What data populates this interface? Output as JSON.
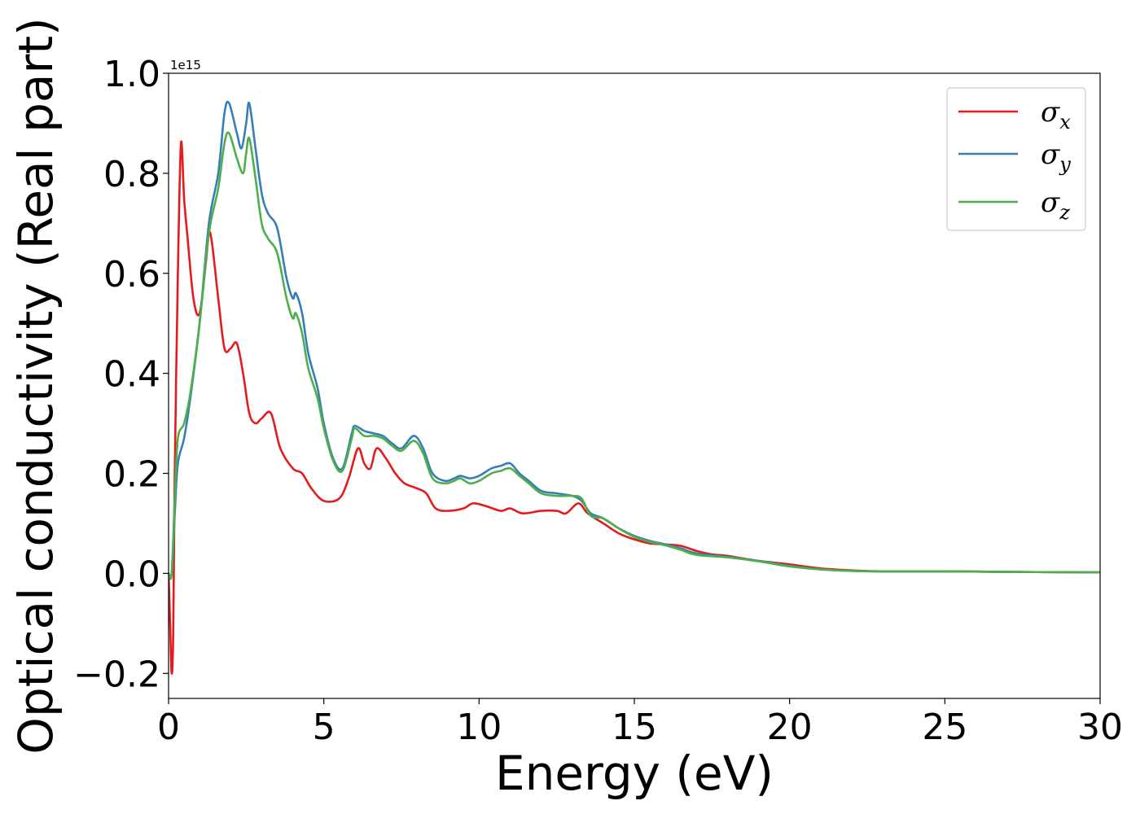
{
  "chart_data": {
    "type": "line",
    "title": "",
    "xlabel": "Energy (eV)",
    "ylabel": "Optical conductivity (Real part)",
    "y_offset_text": "1e15",
    "xlim": [
      0,
      30
    ],
    "ylim": [
      -0.25,
      1.0
    ],
    "x_ticks": [
      0,
      5,
      10,
      15,
      20,
      25,
      30
    ],
    "x_tick_labels": [
      "0",
      "5",
      "10",
      "15",
      "20",
      "25",
      "30"
    ],
    "y_ticks": [
      -0.2,
      0.0,
      0.2,
      0.4,
      0.6,
      0.8,
      1.0
    ],
    "y_tick_labels": [
      "−0.2",
      "0.0",
      "0.2",
      "0.4",
      "0.6",
      "0.8",
      "1.0"
    ],
    "grid": false,
    "legend_position": "top-right",
    "series": [
      {
        "name": "σx",
        "symbol": "σ",
        "subscript": "x",
        "color": "#e41a1c",
        "points": [
          [
            0,
            0.0
          ],
          [
            0.05,
            -0.1
          ],
          [
            0.1,
            -0.2
          ],
          [
            0.15,
            -0.12
          ],
          [
            0.2,
            0.2
          ],
          [
            0.3,
            0.6
          ],
          [
            0.4,
            0.86
          ],
          [
            0.5,
            0.75
          ],
          [
            0.6,
            0.68
          ],
          [
            0.8,
            0.55
          ],
          [
            1.0,
            0.52
          ],
          [
            1.2,
            0.62
          ],
          [
            1.3,
            0.68
          ],
          [
            1.4,
            0.66
          ],
          [
            1.6,
            0.55
          ],
          [
            1.8,
            0.45
          ],
          [
            2.0,
            0.45
          ],
          [
            2.2,
            0.46
          ],
          [
            2.4,
            0.4
          ],
          [
            2.6,
            0.32
          ],
          [
            2.8,
            0.3
          ],
          [
            3.0,
            0.31
          ],
          [
            3.3,
            0.32
          ],
          [
            3.6,
            0.25
          ],
          [
            4.0,
            0.21
          ],
          [
            4.3,
            0.2
          ],
          [
            4.6,
            0.17
          ],
          [
            5.0,
            0.145
          ],
          [
            5.5,
            0.15
          ],
          [
            5.8,
            0.19
          ],
          [
            6.1,
            0.25
          ],
          [
            6.3,
            0.22
          ],
          [
            6.5,
            0.21
          ],
          [
            6.7,
            0.25
          ],
          [
            7.0,
            0.23
          ],
          [
            7.3,
            0.2
          ],
          [
            7.6,
            0.18
          ],
          [
            8.0,
            0.17
          ],
          [
            8.3,
            0.16
          ],
          [
            8.6,
            0.13
          ],
          [
            9.0,
            0.125
          ],
          [
            9.5,
            0.13
          ],
          [
            9.8,
            0.14
          ],
          [
            10.2,
            0.135
          ],
          [
            10.7,
            0.125
          ],
          [
            11.0,
            0.13
          ],
          [
            11.4,
            0.12
          ],
          [
            12.0,
            0.125
          ],
          [
            12.5,
            0.125
          ],
          [
            12.8,
            0.12
          ],
          [
            13.2,
            0.14
          ],
          [
            13.5,
            0.12
          ],
          [
            14.0,
            0.1
          ],
          [
            14.5,
            0.08
          ],
          [
            15.0,
            0.068
          ],
          [
            15.5,
            0.06
          ],
          [
            16.0,
            0.058
          ],
          [
            16.5,
            0.055
          ],
          [
            17.0,
            0.045
          ],
          [
            17.5,
            0.038
          ],
          [
            18.0,
            0.035
          ],
          [
            19.0,
            0.025
          ],
          [
            20.0,
            0.018
          ],
          [
            21.0,
            0.01
          ],
          [
            22.0,
            0.006
          ],
          [
            23.0,
            0.004
          ],
          [
            25.0,
            0.004
          ],
          [
            27.0,
            0.003
          ],
          [
            30.0,
            0.002
          ]
        ]
      },
      {
        "name": "σy",
        "symbol": "σ",
        "subscript": "y",
        "color": "#377eb8",
        "points": [
          [
            0,
            0.0
          ],
          [
            0.1,
            0.0
          ],
          [
            0.2,
            0.12
          ],
          [
            0.3,
            0.22
          ],
          [
            0.5,
            0.27
          ],
          [
            0.7,
            0.35
          ],
          [
            1.0,
            0.5
          ],
          [
            1.3,
            0.7
          ],
          [
            1.6,
            0.8
          ],
          [
            1.8,
            0.92
          ],
          [
            1.95,
            0.94
          ],
          [
            2.2,
            0.88
          ],
          [
            2.35,
            0.85
          ],
          [
            2.5,
            0.9
          ],
          [
            2.6,
            0.94
          ],
          [
            2.8,
            0.85
          ],
          [
            3.0,
            0.76
          ],
          [
            3.2,
            0.72
          ],
          [
            3.5,
            0.69
          ],
          [
            3.8,
            0.59
          ],
          [
            4.0,
            0.55
          ],
          [
            4.1,
            0.56
          ],
          [
            4.3,
            0.52
          ],
          [
            4.5,
            0.44
          ],
          [
            4.8,
            0.37
          ],
          [
            5.0,
            0.3
          ],
          [
            5.3,
            0.23
          ],
          [
            5.6,
            0.21
          ],
          [
            5.9,
            0.28
          ],
          [
            6.0,
            0.295
          ],
          [
            6.3,
            0.285
          ],
          [
            6.6,
            0.28
          ],
          [
            6.9,
            0.275
          ],
          [
            7.2,
            0.26
          ],
          [
            7.5,
            0.25
          ],
          [
            7.9,
            0.275
          ],
          [
            8.2,
            0.25
          ],
          [
            8.5,
            0.2
          ],
          [
            8.9,
            0.185
          ],
          [
            9.2,
            0.19
          ],
          [
            9.4,
            0.195
          ],
          [
            9.7,
            0.19
          ],
          [
            10.0,
            0.195
          ],
          [
            10.4,
            0.21
          ],
          [
            10.7,
            0.215
          ],
          [
            11.0,
            0.22
          ],
          [
            11.3,
            0.2
          ],
          [
            11.6,
            0.185
          ],
          [
            12.0,
            0.165
          ],
          [
            12.5,
            0.16
          ],
          [
            13.0,
            0.155
          ],
          [
            13.3,
            0.145
          ],
          [
            13.6,
            0.12
          ],
          [
            14.0,
            0.11
          ],
          [
            14.5,
            0.09
          ],
          [
            15.0,
            0.075
          ],
          [
            15.5,
            0.065
          ],
          [
            16.0,
            0.058
          ],
          [
            16.5,
            0.05
          ],
          [
            17.0,
            0.04
          ],
          [
            18.0,
            0.033
          ],
          [
            19.0,
            0.025
          ],
          [
            20.0,
            0.015
          ],
          [
            21.0,
            0.008
          ],
          [
            22.0,
            0.005
          ],
          [
            23.0,
            0.004
          ],
          [
            25.0,
            0.004
          ],
          [
            27.0,
            0.003
          ],
          [
            30.0,
            0.002
          ]
        ]
      },
      {
        "name": "σz",
        "symbol": "σ",
        "subscript": "z",
        "color": "#4daf4a",
        "points": [
          [
            0,
            0.0
          ],
          [
            0.1,
            0.0
          ],
          [
            0.2,
            0.15
          ],
          [
            0.3,
            0.27
          ],
          [
            0.5,
            0.3
          ],
          [
            0.7,
            0.36
          ],
          [
            1.0,
            0.5
          ],
          [
            1.3,
            0.68
          ],
          [
            1.6,
            0.77
          ],
          [
            1.8,
            0.86
          ],
          [
            1.95,
            0.88
          ],
          [
            2.2,
            0.83
          ],
          [
            2.4,
            0.8
          ],
          [
            2.5,
            0.84
          ],
          [
            2.6,
            0.87
          ],
          [
            2.8,
            0.79
          ],
          [
            3.0,
            0.7
          ],
          [
            3.2,
            0.67
          ],
          [
            3.5,
            0.64
          ],
          [
            3.8,
            0.55
          ],
          [
            4.0,
            0.51
          ],
          [
            4.1,
            0.52
          ],
          [
            4.3,
            0.48
          ],
          [
            4.5,
            0.41
          ],
          [
            4.8,
            0.35
          ],
          [
            5.0,
            0.29
          ],
          [
            5.3,
            0.225
          ],
          [
            5.6,
            0.205
          ],
          [
            5.9,
            0.27
          ],
          [
            6.0,
            0.29
          ],
          [
            6.3,
            0.275
          ],
          [
            6.6,
            0.275
          ],
          [
            6.9,
            0.27
          ],
          [
            7.2,
            0.255
          ],
          [
            7.5,
            0.245
          ],
          [
            7.9,
            0.265
          ],
          [
            8.2,
            0.24
          ],
          [
            8.5,
            0.19
          ],
          [
            8.9,
            0.18
          ],
          [
            9.2,
            0.185
          ],
          [
            9.4,
            0.19
          ],
          [
            9.7,
            0.18
          ],
          [
            10.0,
            0.185
          ],
          [
            10.4,
            0.2
          ],
          [
            10.7,
            0.205
          ],
          [
            11.0,
            0.21
          ],
          [
            11.3,
            0.195
          ],
          [
            11.6,
            0.18
          ],
          [
            12.0,
            0.16
          ],
          [
            12.5,
            0.155
          ],
          [
            13.0,
            0.155
          ],
          [
            13.3,
            0.15
          ],
          [
            13.6,
            0.115
          ],
          [
            14.0,
            0.11
          ],
          [
            14.5,
            0.09
          ],
          [
            15.0,
            0.073
          ],
          [
            15.5,
            0.063
          ],
          [
            16.0,
            0.056
          ],
          [
            16.5,
            0.047
          ],
          [
            17.0,
            0.037
          ],
          [
            18.0,
            0.032
          ],
          [
            19.0,
            0.024
          ],
          [
            20.0,
            0.014
          ],
          [
            21.0,
            0.008
          ],
          [
            22.0,
            0.005
          ],
          [
            23.0,
            0.004
          ],
          [
            25.0,
            0.004
          ],
          [
            27.0,
            0.003
          ],
          [
            30.0,
            0.002
          ]
        ]
      }
    ]
  }
}
